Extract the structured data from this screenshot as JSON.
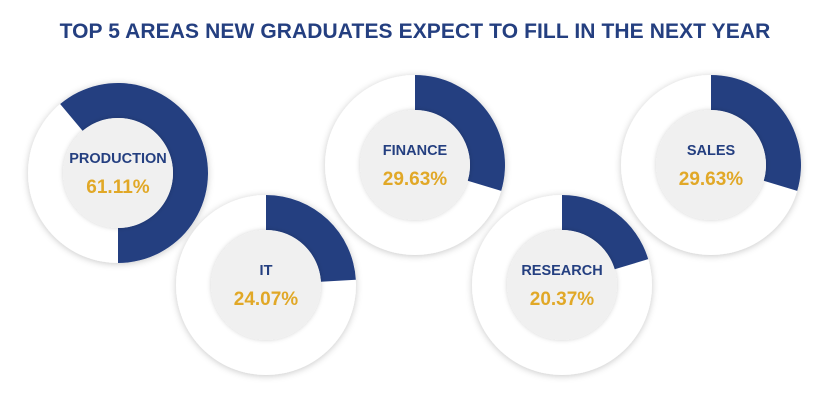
{
  "colors": {
    "title": "#243f80",
    "segment": "#243f80",
    "value": "#e1a827",
    "ring": "#ffffff",
    "center": "#f0f0f0",
    "label": "#243f80",
    "background": "#ffffff"
  },
  "chart_data": {
    "type": "pie",
    "title": "TOP 5 AREAS NEW GRADUATES EXPECT TO FILL IN THE NEXT YEAR",
    "categories": [
      "PRODUCTION",
      "IT",
      "FINANCE",
      "RESEARCH",
      "SALES"
    ],
    "values": [
      61.11,
      24.07,
      29.63,
      20.37,
      29.63
    ],
    "value_labels": [
      "61.11%",
      "24.07%",
      "29.63%",
      "20.37%",
      "29.63%"
    ],
    "unit": "%"
  }
}
